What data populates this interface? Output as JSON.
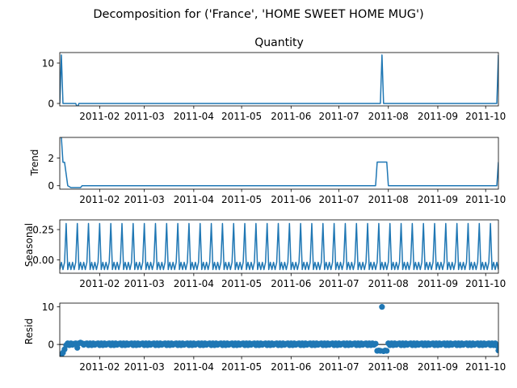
{
  "figure": {
    "suptitle": "Decomposition for ('France', 'HOME SWEET HOME MUG')"
  },
  "colors": {
    "line": "#1f77b4",
    "axes": "#000000"
  },
  "chart_data": [
    {
      "type": "line",
      "title": "Quantity",
      "ylabel": "",
      "x_axis": "date",
      "xlim": [
        "2011-01-07",
        "2011-10-09"
      ],
      "xticks": [
        "2011-02",
        "2011-03",
        "2011-04",
        "2011-05",
        "2011-06",
        "2011-07",
        "2011-08",
        "2011-09",
        "2011-10"
      ],
      "ylim": [
        -0.6,
        12.6
      ],
      "yticks": [
        0,
        10
      ],
      "series": [
        {
          "points": [
            [
              "2011-01-07",
              0
            ],
            [
              "2011-01-08",
              12
            ],
            [
              "2011-01-09",
              0
            ],
            [
              "2011-01-17",
              0
            ],
            [
              "2011-01-18",
              -1
            ],
            [
              "2011-01-19",
              0
            ],
            [
              "2011-07-27",
              0
            ],
            [
              "2011-07-28",
              12
            ],
            [
              "2011-07-29",
              0
            ],
            [
              "2011-10-08",
              0
            ],
            [
              "2011-10-09",
              12
            ]
          ]
        }
      ]
    },
    {
      "type": "line",
      "title": "",
      "ylabel": "Trend",
      "x_axis": "date",
      "xlim": [
        "2011-01-07",
        "2011-10-09"
      ],
      "xticks": [
        "2011-02",
        "2011-03",
        "2011-04",
        "2011-05",
        "2011-06",
        "2011-07",
        "2011-08",
        "2011-09",
        "2011-10"
      ],
      "ylim": [
        -0.25,
        3.5
      ],
      "yticks": [
        0,
        2
      ],
      "series": [
        {
          "points": [
            [
              "2011-01-08",
              3.5
            ],
            [
              "2011-01-09",
              1.7
            ],
            [
              "2011-01-10",
              1.7
            ],
            [
              "2011-01-12",
              0.0
            ],
            [
              "2011-01-14",
              -0.14
            ],
            [
              "2011-01-20",
              -0.14
            ],
            [
              "2011-01-21",
              0.0
            ],
            [
              "2011-07-24",
              0.0
            ],
            [
              "2011-07-25",
              1.71
            ],
            [
              "2011-07-31",
              1.71
            ],
            [
              "2011-08-01",
              0.0
            ],
            [
              "2011-10-08",
              0.0
            ],
            [
              "2011-10-09",
              1.71
            ]
          ]
        }
      ]
    },
    {
      "type": "line",
      "title": "",
      "ylabel": "Seasonal",
      "x_axis": "date",
      "xlim": [
        "2011-01-07",
        "2011-10-09"
      ],
      "xticks": [
        "2011-02",
        "2011-03",
        "2011-04",
        "2011-05",
        "2011-06",
        "2011-07",
        "2011-08",
        "2011-09",
        "2011-10"
      ],
      "ylim": [
        -0.11,
        0.33
      ],
      "yticks": [
        0.25,
        0.0
      ],
      "yticklabels": [
        "0.25",
        "0.00"
      ],
      "periodic": {
        "start": "2011-01-07",
        "end": "2011-10-09",
        "period_days": 7,
        "pattern": [
          -0.08,
          -0.02,
          -0.08,
          -0.02,
          0.3,
          -0.08,
          -0.02
        ]
      }
    },
    {
      "type": "scatter",
      "title": "",
      "ylabel": "Resid",
      "x_axis": "date",
      "xlim": [
        "2011-01-07",
        "2011-10-09"
      ],
      "xticks": [
        "2011-02",
        "2011-03",
        "2011-04",
        "2011-05",
        "2011-06",
        "2011-07",
        "2011-08",
        "2011-09",
        "2011-10"
      ],
      "ylim": [
        -3.2,
        11.0
      ],
      "yticks": [
        0,
        10
      ],
      "baseline": 0,
      "periodic": {
        "start": "2011-01-12",
        "end": "2011-10-07",
        "period_days": 7,
        "pattern": [
          0.3,
          -0.2,
          0.3,
          -0.1,
          0.2,
          0.3,
          -0.2
        ]
      },
      "points": [
        [
          "2011-01-07",
          -2.9
        ],
        [
          "2011-01-08",
          -2.8
        ],
        [
          "2011-01-09",
          -2.2
        ],
        [
          "2011-01-10",
          -1.3
        ],
        [
          "2011-01-11",
          -0.2
        ],
        [
          "2011-01-18",
          -0.9
        ],
        [
          "2011-01-20",
          0.5
        ],
        [
          "2011-07-25",
          -1.7
        ],
        [
          "2011-07-26",
          -1.6
        ],
        [
          "2011-07-27",
          -1.7
        ],
        [
          "2011-07-28",
          10.0
        ],
        [
          "2011-07-29",
          -1.8
        ],
        [
          "2011-07-30",
          -1.6
        ],
        [
          "2011-07-31",
          -1.7
        ],
        [
          "2011-10-08",
          -0.3
        ],
        [
          "2011-10-09",
          -1.6
        ]
      ]
    }
  ]
}
